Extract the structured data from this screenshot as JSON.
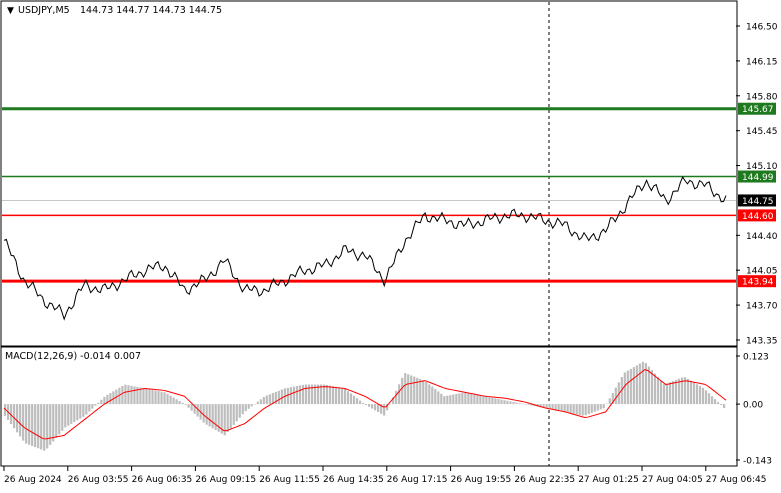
{
  "chart": {
    "symbol": "USDJPY,M5",
    "ohlc": "144.73 144.77 144.73 144.75",
    "symbol_arrow": "▼"
  },
  "price_axis": {
    "ticks": [
      "146.50",
      "146.15",
      "145.80",
      "145.45",
      "145.10",
      "144.40",
      "144.05",
      "143.70",
      "143.35"
    ],
    "tick_values": [
      146.5,
      146.15,
      145.8,
      145.45,
      145.1,
      144.4,
      144.05,
      143.7,
      143.35
    ]
  },
  "levels": [
    {
      "label": "145.67",
      "value": 145.67,
      "color": "#1f7a1f",
      "bg": "#1f7a1f",
      "thick": true
    },
    {
      "label": "144.99",
      "value": 144.99,
      "color": "#1f7a1f",
      "bg": "#1f7a1f",
      "thick": false
    },
    {
      "label": "144.75",
      "value": 144.75,
      "color": "#000000",
      "bg": "#000000",
      "thick": false,
      "current": true
    },
    {
      "label": "144.60",
      "value": 144.6,
      "color": "#ff0000",
      "bg": "#ff0000",
      "thick": false
    },
    {
      "label": "143.94",
      "value": 143.94,
      "color": "#ff0000",
      "bg": "#ff0000",
      "thick": true
    }
  ],
  "macd": {
    "title": "MACD(12,26,9) -0.014 0.007",
    "axis_ticks": [
      "0.123",
      "0.00",
      "-0.143"
    ],
    "axis_values": [
      0.123,
      0.0,
      -0.143
    ]
  },
  "time_axis": {
    "labels": [
      "26 Aug 2024",
      "26 Aug 03:55",
      "26 Aug 06:35",
      "26 Aug 09:15",
      "26 Aug 11:55",
      "26 Aug 14:35",
      "26 Aug 17:15",
      "26 Aug 19:55",
      "26 Aug 22:35",
      "27 Aug 01:25",
      "27 Aug 04:05",
      "27 Aug 06:45"
    ]
  },
  "colors": {
    "price_line": "#000000",
    "signal_line": "#ff0000",
    "histogram": "#bdbdbd",
    "grid": "#000000",
    "crosshair": "#000000"
  },
  "chart_data": {
    "type": "line",
    "x": [
      "26 Aug 2024",
      "26 Aug 03:55",
      "26 Aug 06:35",
      "26 Aug 09:15",
      "26 Aug 11:55",
      "26 Aug 14:35",
      "26 Aug 17:15",
      "26 Aug 19:55",
      "26 Aug 22:35",
      "27 Aug 01:25",
      "27 Aug 04:05",
      "27 Aug 06:45"
    ],
    "price_series": [
      144.35,
      143.95,
      143.75,
      143.6,
      143.9,
      143.85,
      143.95,
      144.05,
      144.1,
      143.85,
      143.95,
      144.15,
      143.85,
      143.85,
      143.95,
      144.05,
      144.1,
      144.25,
      144.2,
      143.95,
      144.35,
      144.6,
      144.55,
      144.5,
      144.55,
      144.6,
      144.6,
      144.55,
      144.5,
      144.35,
      144.45,
      144.7,
      144.95,
      144.75,
      144.95,
      144.9,
      144.75
    ],
    "macd_hist": [
      -0.03,
      -0.1,
      -0.12,
      -0.06,
      -0.03,
      0.02,
      0.05,
      0.04,
      0.03,
      0.0,
      -0.05,
      -0.08,
      -0.02,
      0.02,
      0.04,
      0.05,
      0.05,
      0.04,
      0.0,
      -0.03,
      0.08,
      0.06,
      0.02,
      0.03,
      0.02,
      0.01,
      0.0,
      -0.01,
      -0.02,
      -0.03,
      -0.01,
      0.08,
      0.11,
      0.05,
      0.07,
      0.04,
      -0.01
    ],
    "macd_signal": [
      -0.01,
      -0.06,
      -0.09,
      -0.08,
      -0.04,
      0.0,
      0.03,
      0.04,
      0.035,
      0.02,
      -0.03,
      -0.07,
      -0.05,
      -0.01,
      0.02,
      0.04,
      0.045,
      0.04,
      0.02,
      -0.01,
      0.05,
      0.06,
      0.04,
      0.03,
      0.02,
      0.015,
      0.005,
      -0.01,
      -0.02,
      -0.035,
      -0.02,
      0.05,
      0.09,
      0.05,
      0.06,
      0.05,
      0.01
    ],
    "ylim": [
      143.35,
      146.5
    ],
    "macd_ylim": [
      -0.143,
      0.123
    ]
  }
}
